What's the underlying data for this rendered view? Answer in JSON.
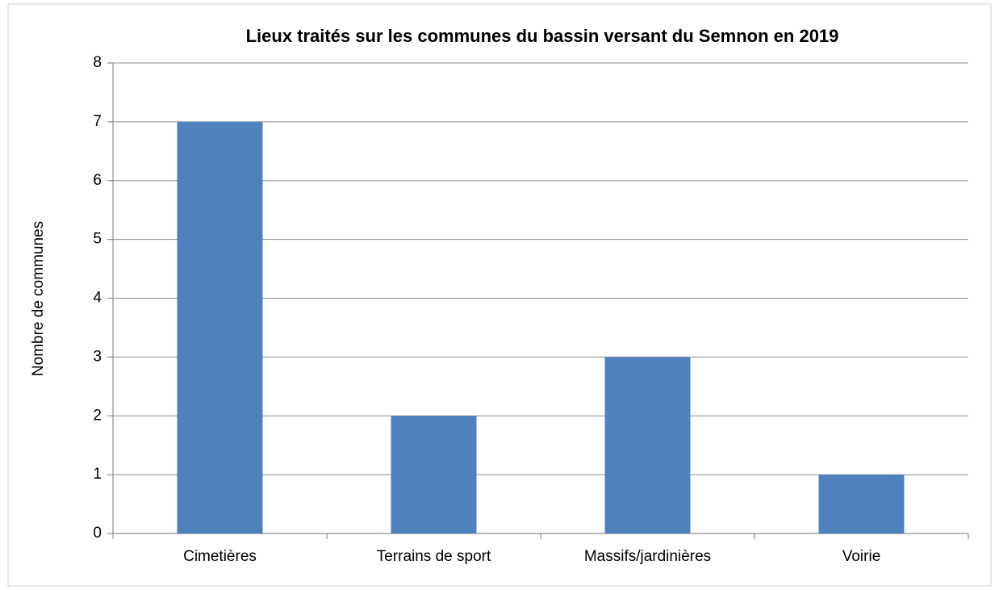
{
  "chart_data": {
    "type": "bar",
    "title": "Lieux traités sur les communes du bassin versant du Semnon en 2019",
    "y_label": "Nombre de communes",
    "categories": [
      "Cimetières",
      "Terrains de sport",
      "Massifs/jardinières",
      "Voirie"
    ],
    "values": [
      7,
      2,
      3,
      1
    ],
    "color": "#4f81bd",
    "ylim": [
      0,
      8
    ],
    "yticks": [
      0,
      1,
      2,
      3,
      4,
      5,
      6,
      7,
      8
    ],
    "grid": true
  }
}
